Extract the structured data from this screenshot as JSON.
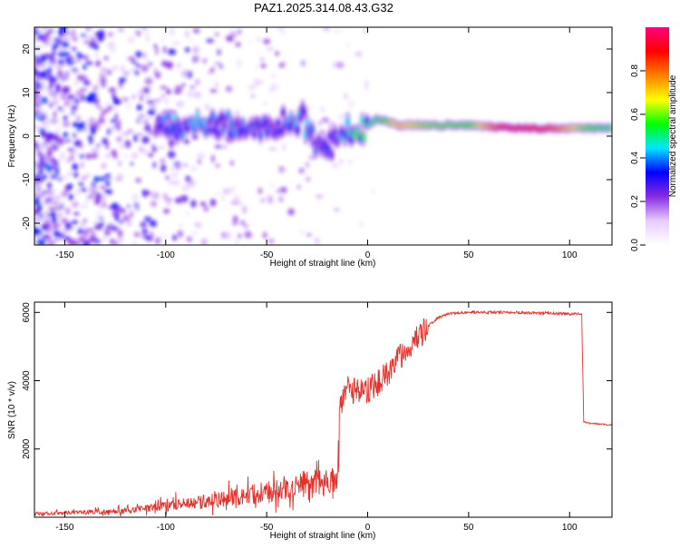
{
  "title": "PAZ1.2025.314.08.43.G32",
  "chart_data": [
    {
      "type": "heatmap",
      "name": "spectrogram",
      "xlabel": "Height of straight line (km)",
      "ylabel": "Frequency (Hz)",
      "xlim": [
        -165,
        121
      ],
      "ylim": [
        -25,
        25
      ],
      "xticks": [
        -150,
        -100,
        -50,
        0,
        50,
        100
      ],
      "yticks": [
        -20,
        -10,
        0,
        10,
        20
      ],
      "colorbar": {
        "label": "Normalized spectral amplitude",
        "range": [
          0,
          1
        ],
        "ticks": [
          0.0,
          0.2,
          0.4,
          0.6,
          0.8
        ],
        "tick_labels": [
          "0.0",
          "0.2",
          "0.4",
          "0.6",
          "0.8"
        ],
        "colors": [
          "#ffffff",
          "#e6ccff",
          "#8a2be2",
          "#0000ff",
          "#00e5ff",
          "#00ff00",
          "#ffff00",
          "#ff8000",
          "#ff0000",
          "#ff0080"
        ]
      },
      "ridge": [
        {
          "x": -105,
          "y": 3,
          "v": 0.35
        },
        {
          "x": -90,
          "y": 2,
          "v": 0.4
        },
        {
          "x": -75,
          "y": 3,
          "v": 0.35
        },
        {
          "x": -60,
          "y": 2,
          "v": 0.35
        },
        {
          "x": -45,
          "y": 3,
          "v": 0.35
        },
        {
          "x": -32,
          "y": 4,
          "v": 0.4
        },
        {
          "x": -22,
          "y": -4,
          "v": 0.3
        },
        {
          "x": -12,
          "y": 1,
          "v": 0.4
        },
        {
          "x": -5,
          "y": 1,
          "v": 0.5
        },
        {
          "x": 5,
          "y": 4,
          "v": 0.5
        },
        {
          "x": 15,
          "y": 2.5,
          "v": 0.7
        },
        {
          "x": 30,
          "y": 2.5,
          "v": 0.6
        },
        {
          "x": 50,
          "y": 2.5,
          "v": 0.55
        },
        {
          "x": 70,
          "y": 1.8,
          "v": 0.95
        },
        {
          "x": 90,
          "y": 1.8,
          "v": 0.85
        },
        {
          "x": 110,
          "y": 1.8,
          "v": 0.55
        },
        {
          "x": 121,
          "y": 1.8,
          "v": 0.5
        }
      ]
    },
    {
      "type": "line",
      "name": "snr",
      "xlabel": "Height of straight line (km)",
      "ylabel": "SNR (10 * v/v)",
      "xlim": [
        -165,
        121
      ],
      "ylim": [
        0,
        6300
      ],
      "xticks": [
        -150,
        -100,
        -50,
        0,
        50,
        100
      ],
      "yticks": [
        2000,
        4000,
        6000
      ],
      "color": "#e8302a",
      "series": [
        {
          "name": "SNR",
          "x": [
            -165,
            -150,
            -140,
            -130,
            -120,
            -110,
            -100,
            -90,
            -80,
            -70,
            -60,
            -50,
            -40,
            -30,
            -25,
            -20,
            -15,
            -13,
            -10,
            -5,
            0,
            5,
            10,
            15,
            20,
            25,
            30,
            35,
            40,
            50,
            60,
            70,
            80,
            90,
            100,
            106,
            107,
            110,
            121
          ],
          "y": [
            100,
            120,
            140,
            150,
            180,
            250,
            320,
            400,
            450,
            520,
            600,
            700,
            800,
            900,
            950,
            1000,
            1100,
            3300,
            3800,
            3600,
            3700,
            3900,
            4200,
            4600,
            4900,
            5200,
            5600,
            5850,
            5950,
            6000,
            6000,
            6000,
            5980,
            5980,
            5950,
            5950,
            2800,
            2750,
            2700
          ]
        }
      ]
    }
  ]
}
